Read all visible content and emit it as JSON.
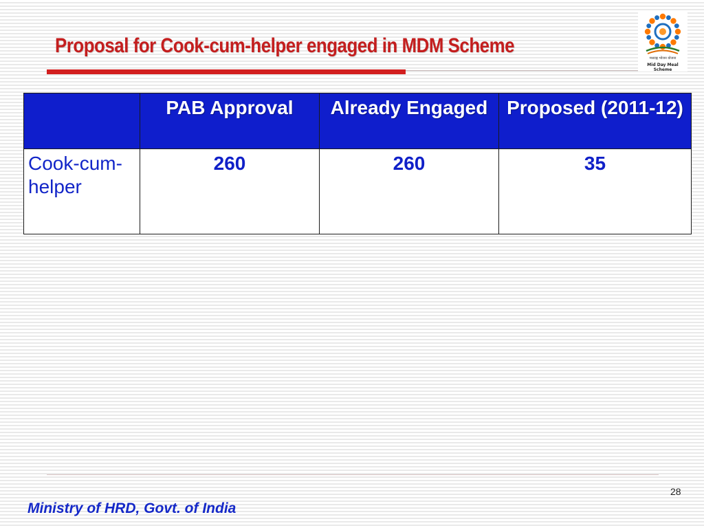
{
  "slide": {
    "title": "Proposal for Cook-cum-helper engaged in MDM Scheme",
    "page_number": "28",
    "footer": "Ministry of HRD, Govt. of India"
  },
  "logo": {
    "hindi_text": "मध्याह्न भोजन योजना",
    "english_text": "Mid Day Meal Scheme"
  },
  "table": {
    "headers": [
      "",
      "PAB Approval",
      "Already Engaged",
      "Proposed (2011-12)"
    ],
    "rows": [
      {
        "label": "Cook-cum-helper",
        "values": [
          "260",
          "260",
          "35"
        ]
      }
    ]
  },
  "colors": {
    "title": "#c41e1e",
    "header_bg": "#0f1ecc",
    "body_text": "#1020c8",
    "accent_rule": "#d21f1f"
  }
}
